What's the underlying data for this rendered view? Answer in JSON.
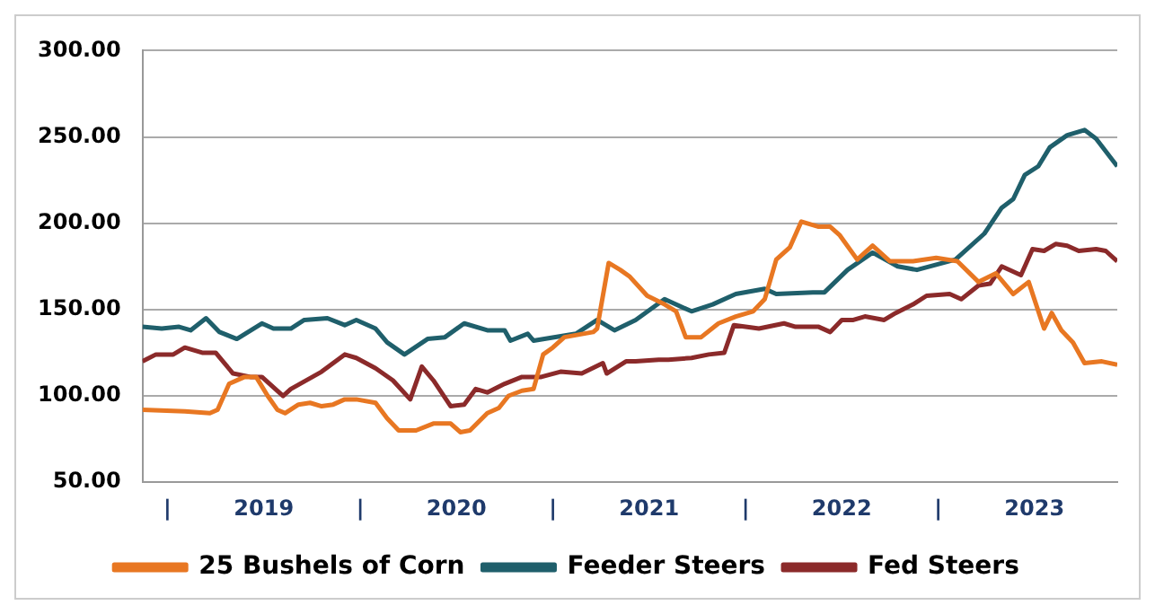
{
  "chart_data": {
    "type": "line",
    "xlim": [
      2018.87,
      2023.93
    ],
    "xticks": [
      {
        "value": 2019,
        "label": "|"
      },
      {
        "value": 2019.5,
        "label": "2019"
      },
      {
        "value": 2020,
        "label": "|"
      },
      {
        "value": 2020.5,
        "label": "2020"
      },
      {
        "value": 2021,
        "label": "|"
      },
      {
        "value": 2021.5,
        "label": "2021"
      },
      {
        "value": 2022,
        "label": "|"
      },
      {
        "value": 2022.5,
        "label": "2022"
      },
      {
        "value": 2023,
        "label": "|"
      },
      {
        "value": 2023.5,
        "label": "2023"
      }
    ],
    "ylim": [
      50,
      300
    ],
    "yticks": [
      {
        "value": 50,
        "label": "50.00"
      },
      {
        "value": 100,
        "label": "100.00"
      },
      {
        "value": 150,
        "label": "150.00"
      },
      {
        "value": 200,
        "label": "200.00"
      },
      {
        "value": 250,
        "label": "250.00"
      },
      {
        "value": 300,
        "label": "300.00"
      }
    ],
    "grid": "y",
    "legend": "bottom",
    "marker": "none",
    "line_style": "solid",
    "series": [
      {
        "name": "25 Bushels of Corn",
        "color": "#e87722",
        "x": [
          2018.87,
          2019.09,
          2019.22,
          2019.26,
          2019.32,
          2019.4,
          2019.46,
          2019.52,
          2019.57,
          2019.61,
          2019.68,
          2019.74,
          2019.8,
          2019.86,
          2019.92,
          2019.98,
          2020.08,
          2020.14,
          2020.2,
          2020.29,
          2020.38,
          2020.47,
          2020.52,
          2020.57,
          2020.66,
          2020.72,
          2020.77,
          2020.84,
          2020.9,
          2020.95,
          2021.0,
          2021.06,
          2021.21,
          2021.23,
          2021.29,
          2021.35,
          2021.4,
          2021.49,
          2021.58,
          2021.64,
          2021.69,
          2021.77,
          2021.86,
          2021.95,
          2022.04,
          2022.1,
          2022.16,
          2022.23,
          2022.29,
          2022.38,
          2022.44,
          2022.49,
          2022.58,
          2022.66,
          2022.75,
          2022.87,
          2022.99,
          2023.1,
          2023.21,
          2023.3,
          2023.39,
          2023.47,
          2023.55,
          2023.59,
          2023.64,
          2023.7,
          2023.76,
          2023.85,
          2023.93
        ],
        "values": [
          92,
          91,
          90,
          92,
          107,
          111,
          111,
          100,
          92,
          90,
          95,
          96,
          94,
          95,
          98,
          98,
          96,
          87,
          80,
          80,
          84,
          84,
          79,
          80,
          90,
          93,
          100,
          103,
          104,
          124,
          128,
          134,
          137,
          139,
          177,
          173,
          169,
          158,
          153,
          149,
          134,
          134,
          142,
          146,
          149,
          156,
          179,
          186,
          201,
          198,
          198,
          193,
          179,
          187,
          178,
          178,
          180,
          178,
          166,
          171,
          159,
          166,
          139,
          148,
          138,
          131,
          119,
          120,
          118
        ]
      },
      {
        "name": "Feeder Steers",
        "color": "#1f5f6b",
        "x": [
          2018.87,
          2018.97,
          2019.06,
          2019.12,
          2019.2,
          2019.27,
          2019.36,
          2019.49,
          2019.55,
          2019.64,
          2019.71,
          2019.83,
          2019.92,
          2019.98,
          2020.08,
          2020.14,
          2020.23,
          2020.35,
          2020.44,
          2020.54,
          2020.66,
          2020.75,
          2020.78,
          2020.87,
          2020.9,
          2021.12,
          2021.23,
          2021.32,
          2021.43,
          2021.58,
          2021.72,
          2021.83,
          2021.95,
          2022.1,
          2022.16,
          2022.35,
          2022.41,
          2022.53,
          2022.66,
          2022.79,
          2022.89,
          2023.09,
          2023.24,
          2023.33,
          2023.39,
          2023.45,
          2023.52,
          2023.58,
          2023.67,
          2023.76,
          2023.82,
          2023.93
        ],
        "values": [
          140,
          139,
          140,
          138,
          145,
          137,
          133,
          142,
          139,
          139,
          144,
          145,
          141,
          144,
          139,
          131,
          124,
          133,
          134,
          142,
          138,
          138,
          132,
          136,
          132,
          136,
          144,
          138,
          144,
          156,
          149,
          153,
          159,
          162,
          159,
          160,
          160,
          173,
          183,
          175,
          173,
          179,
          194,
          209,
          214,
          228,
          233,
          244,
          251,
          254,
          249,
          233
        ]
      },
      {
        "name": "Fed Steers",
        "color": "#8b2a2a",
        "x": [
          2018.87,
          2018.94,
          2019.03,
          2019.09,
          2019.18,
          2019.25,
          2019.34,
          2019.43,
          2019.49,
          2019.6,
          2019.64,
          2019.8,
          2019.92,
          2019.98,
          2020.08,
          2020.17,
          2020.26,
          2020.32,
          2020.38,
          2020.47,
          2020.54,
          2020.6,
          2020.66,
          2020.75,
          2020.84,
          2020.94,
          2021.04,
          2021.15,
          2021.26,
          2021.28,
          2021.38,
          2021.43,
          2021.55,
          2021.6,
          2021.72,
          2021.81,
          2021.89,
          2021.94,
          2022.07,
          2022.2,
          2022.26,
          2022.38,
          2022.44,
          2022.5,
          2022.56,
          2022.62,
          2022.72,
          2022.78,
          2022.87,
          2022.94,
          2023.06,
          2023.12,
          2023.21,
          2023.27,
          2023.33,
          2023.43,
          2023.49,
          2023.55,
          2023.61,
          2023.67,
          2023.73,
          2023.82,
          2023.87,
          2023.93
        ],
        "values": [
          120,
          124,
          124,
          128,
          125,
          125,
          113,
          111,
          111,
          100,
          104,
          114,
          124,
          122,
          116,
          109,
          98,
          117,
          109,
          94,
          95,
          104,
          102,
          107,
          111,
          111,
          114,
          113,
          119,
          113,
          120,
          120,
          121,
          121,
          122,
          124,
          125,
          141,
          139,
          142,
          140,
          140,
          137,
          144,
          144,
          146,
          144,
          148,
          153,
          158,
          159,
          156,
          164,
          165,
          175,
          170,
          185,
          184,
          188,
          187,
          184,
          185,
          184,
          178
        ]
      }
    ]
  }
}
